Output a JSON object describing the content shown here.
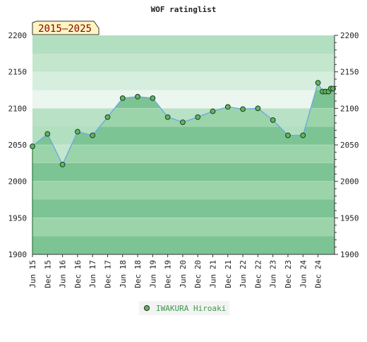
{
  "chart_data": {
    "type": "area",
    "title": "WOF ratinglist",
    "period_badge": "2015–2025",
    "xlabel": "",
    "ylabel": "",
    "ylim": [
      1900,
      2200
    ],
    "yticks": [
      1900,
      1950,
      2000,
      2050,
      2100,
      2150,
      2200
    ],
    "x_tick_labels": [
      "Jun 15",
      "Dec 15",
      "Jun 16",
      "Dec 16",
      "Jun 17",
      "Dec 17",
      "Jun 18",
      "Dec 18",
      "Jun 19",
      "Dec 19",
      "Jun 20",
      "Dec 20",
      "Jun 21",
      "Dec 21",
      "Jun 22",
      "Dec 22",
      "Jun 23",
      "Dec 23",
      "Jun 24",
      "Dec 24"
    ],
    "grid": true,
    "legend_position": "bottom-center",
    "series": [
      {
        "name": "IWAKURA Hiroaki",
        "line_color": "#6aaae0",
        "marker_color": "#5cb85c",
        "x": [
          0,
          1,
          2,
          3,
          4,
          5,
          6,
          7,
          8,
          9,
          10,
          11,
          12,
          13,
          14,
          15,
          16,
          17,
          18,
          19,
          19.3,
          19.5,
          19.7,
          19.85,
          20.0
        ],
        "values": [
          2048,
          2065,
          2023,
          2068,
          2063,
          2088,
          2114,
          2116,
          2114,
          2088,
          2081,
          2088,
          2096,
          2102,
          2099,
          2100,
          2084,
          2063,
          2063,
          2135,
          2123,
          2123,
          2123,
          2127,
          2127
        ]
      }
    ],
    "colors": {
      "band_dark": "#7cc494",
      "band_light": "#9cd4aa",
      "upper_bands": [
        "#b2dfc0",
        "#c3e6cd",
        "#d6eedd",
        "#eaf6ee",
        "#b9e1c6"
      ],
      "legend_text": "#3a9a4a",
      "badge_fill": "#fff5c2",
      "badge_text": "#880000"
    }
  }
}
